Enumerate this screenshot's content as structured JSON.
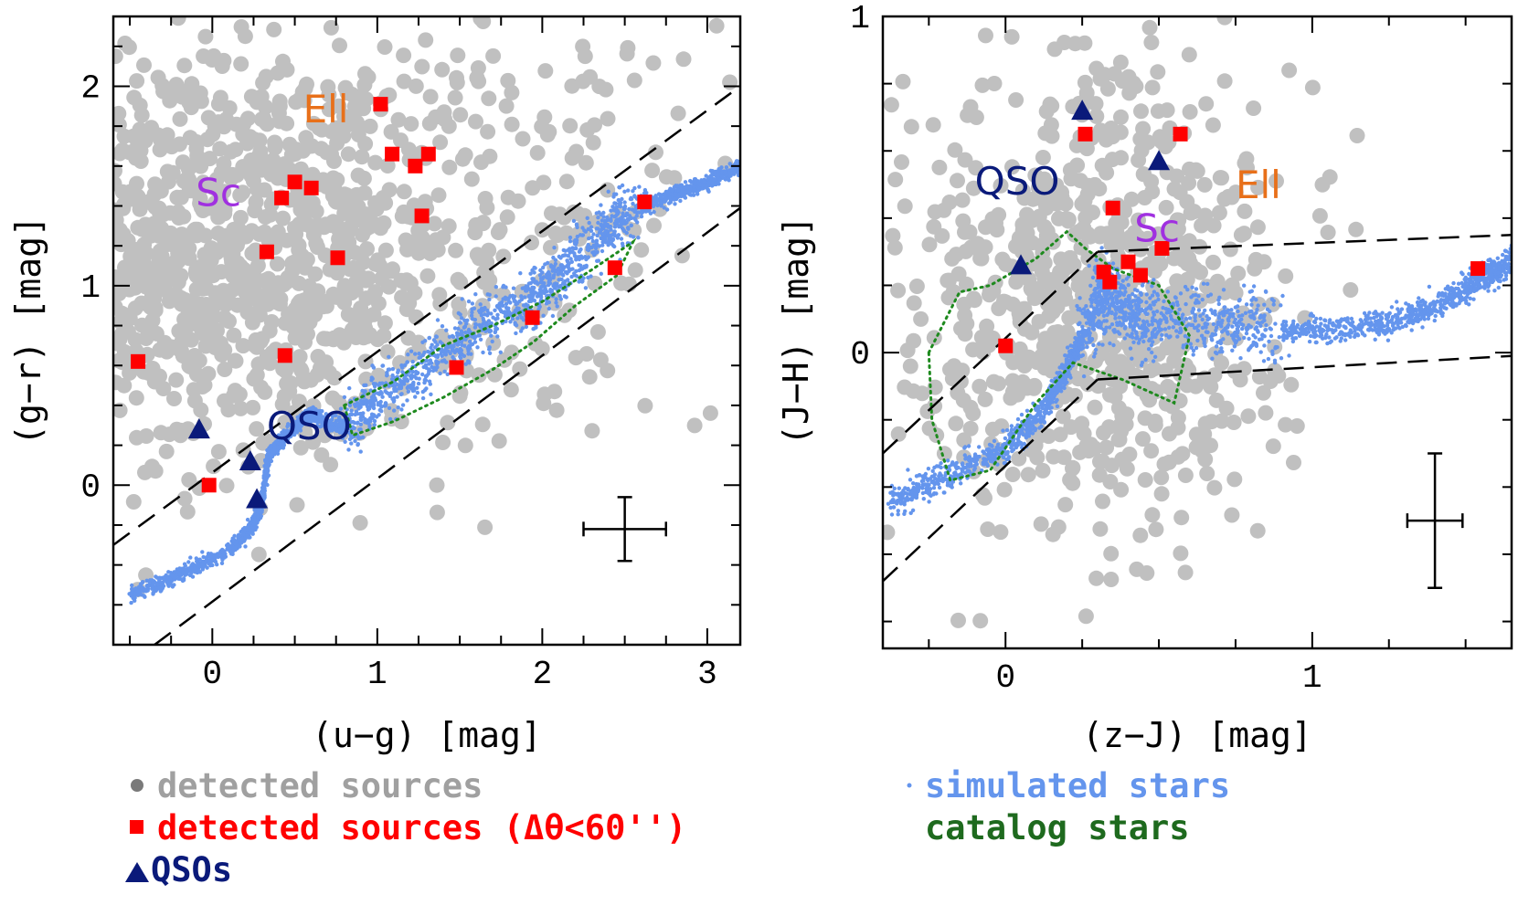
{
  "colors": {
    "detected": "#c0c0c0",
    "matched": "#ff0000",
    "qso": "#0a1a7a",
    "simulated": "#6495ed",
    "catalog": "#1e8a1e",
    "ell": "#e8701a",
    "sc": "#a030e0"
  },
  "legend": {
    "detected": "detected sources",
    "matched": "detected sources (Δθ<60'')",
    "qso": "QSOs",
    "simulated": "simulated stars",
    "catalog": "catalog stars"
  },
  "chart_data": [
    {
      "type": "scatter",
      "xlabel": "(u−g) [mag]",
      "ylabel": "(g−r) [mag]",
      "xlim": [
        -0.6,
        3.2
      ],
      "ylim": [
        -0.8,
        2.35
      ],
      "xticks": [
        0,
        1,
        2,
        3
      ],
      "yticks": [
        0,
        1,
        2
      ],
      "region_labels": [
        {
          "text": "Ell",
          "x": 0.55,
          "y": 1.82,
          "color_key": "ell"
        },
        {
          "text": "Sc",
          "x": -0.1,
          "y": 1.4,
          "color_key": "sc"
        },
        {
          "text": "QSO",
          "x": 0.33,
          "y": 0.23,
          "color_key": "qso"
        }
      ],
      "matched_sources": [
        [
          -0.45,
          0.62
        ],
        [
          -0.02,
          0.0
        ],
        [
          0.33,
          1.17
        ],
        [
          0.42,
          1.44
        ],
        [
          0.5,
          1.52
        ],
        [
          0.6,
          1.49
        ],
        [
          0.44,
          0.65
        ],
        [
          0.76,
          1.14
        ],
        [
          1.02,
          1.91
        ],
        [
          1.09,
          1.66
        ],
        [
          1.23,
          1.6
        ],
        [
          1.31,
          1.66
        ],
        [
          1.27,
          1.35
        ],
        [
          1.48,
          0.59
        ],
        [
          1.94,
          0.84
        ],
        [
          2.44,
          1.09
        ],
        [
          2.62,
          1.42
        ]
      ],
      "qsos": [
        [
          -0.08,
          0.28
        ],
        [
          0.23,
          0.12
        ],
        [
          0.27,
          -0.07
        ]
      ],
      "selection_lines": [
        {
          "x": [
            -0.6,
            3.2
          ],
          "y": [
            -0.3,
            2.0
          ]
        },
        {
          "x": [
            -0.35,
            3.2
          ],
          "y": [
            -0.8,
            1.39
          ]
        }
      ],
      "error_bar": {
        "x": 2.5,
        "y": -0.22,
        "xerr": 0.25,
        "yerr": 0.16
      },
      "stellar_locus": [
        [
          -0.5,
          -0.55
        ],
        [
          -0.2,
          -0.45
        ],
        [
          0.1,
          -0.33
        ],
        [
          0.25,
          -0.2
        ],
        [
          0.3,
          -0.1
        ],
        [
          0.34,
          0.15
        ],
        [
          0.45,
          0.25
        ],
        [
          0.6,
          0.36
        ],
        [
          0.8,
          0.28
        ],
        [
          1.0,
          0.42
        ],
        [
          1.3,
          0.6
        ],
        [
          1.6,
          0.78
        ],
        [
          1.9,
          0.92
        ],
        [
          2.1,
          1.05
        ],
        [
          2.35,
          1.25
        ],
        [
          2.55,
          1.38
        ],
        [
          2.8,
          1.46
        ],
        [
          3.0,
          1.52
        ],
        [
          3.2,
          1.59
        ]
      ],
      "catalog_contour": [
        [
          0.8,
          0.4
        ],
        [
          1.1,
          0.52
        ],
        [
          1.4,
          0.7
        ],
        [
          1.7,
          0.8
        ],
        [
          2.0,
          0.92
        ],
        [
          2.3,
          1.08
        ],
        [
          2.55,
          1.22
        ],
        [
          2.45,
          1.05
        ],
        [
          2.2,
          0.9
        ],
        [
          1.95,
          0.72
        ],
        [
          1.7,
          0.58
        ],
        [
          1.4,
          0.44
        ],
        [
          1.1,
          0.32
        ],
        [
          0.85,
          0.25
        ],
        [
          0.8,
          0.4
        ]
      ]
    },
    {
      "type": "scatter",
      "xlabel": "(z−J) [mag]",
      "ylabel": "(J−H) [mag]",
      "xlim": [
        -0.4,
        1.65
      ],
      "ylim": [
        -0.88,
        1.0
      ],
      "xticks": [
        0,
        1
      ],
      "yticks": [
        0,
        1
      ],
      "region_labels": [
        {
          "text": "QSO",
          "x": -0.1,
          "y": 0.47,
          "color_key": "qso"
        },
        {
          "text": "Ell",
          "x": 0.75,
          "y": 0.46,
          "color_key": "ell"
        },
        {
          "text": "Sc",
          "x": 0.42,
          "y": 0.33,
          "color_key": "sc"
        }
      ],
      "matched_sources": [
        [
          0.0,
          0.02
        ],
        [
          0.26,
          0.65
        ],
        [
          0.57,
          0.65
        ],
        [
          0.35,
          0.43
        ],
        [
          0.51,
          0.31
        ],
        [
          0.32,
          0.24
        ],
        [
          0.34,
          0.21
        ],
        [
          0.4,
          0.27
        ],
        [
          0.44,
          0.23
        ],
        [
          1.54,
          0.25
        ]
      ],
      "qsos": [
        [
          0.25,
          0.72
        ],
        [
          0.5,
          0.57
        ],
        [
          0.05,
          0.26
        ]
      ],
      "selection_lines": [
        {
          "x": [
            -0.4,
            0.3
          ],
          "y": [
            -0.3,
            0.3
          ]
        },
        {
          "x": [
            0.3,
            1.65
          ],
          "y": [
            0.3,
            0.35
          ]
        },
        {
          "x": [
            -0.4,
            0.3
          ],
          "y": [
            -0.68,
            -0.08
          ]
        },
        {
          "x": [
            0.3,
            1.65
          ],
          "y": [
            -0.08,
            -0.01
          ]
        }
      ],
      "error_bar": {
        "x": 1.4,
        "y": -0.5,
        "xerr": 0.09,
        "yerr": 0.2
      },
      "stellar_locus": [
        [
          -0.38,
          -0.45
        ],
        [
          -0.2,
          -0.37
        ],
        [
          0.0,
          -0.28
        ],
        [
          0.12,
          -0.18
        ],
        [
          0.2,
          -0.05
        ],
        [
          0.28,
          0.1
        ],
        [
          0.33,
          0.19
        ],
        [
          0.4,
          0.12
        ],
        [
          0.5,
          0.1
        ],
        [
          0.7,
          0.09
        ],
        [
          0.9,
          0.07
        ],
        [
          1.1,
          0.07
        ],
        [
          1.3,
          0.1
        ],
        [
          1.45,
          0.16
        ],
        [
          1.55,
          0.22
        ],
        [
          1.65,
          0.27
        ]
      ],
      "catalog_contour": [
        [
          -0.25,
          0.0
        ],
        [
          -0.15,
          0.18
        ],
        [
          -0.05,
          0.2
        ],
        [
          0.1,
          0.28
        ],
        [
          0.2,
          0.36
        ],
        [
          0.26,
          0.31
        ],
        [
          0.35,
          0.25
        ],
        [
          0.5,
          0.2
        ],
        [
          0.6,
          0.05
        ],
        [
          0.55,
          -0.15
        ],
        [
          0.38,
          -0.08
        ],
        [
          0.22,
          -0.03
        ],
        [
          0.1,
          -0.15
        ],
        [
          -0.05,
          -0.35
        ],
        [
          -0.18,
          -0.38
        ],
        [
          -0.24,
          -0.2
        ],
        [
          -0.25,
          0.0
        ]
      ]
    }
  ]
}
